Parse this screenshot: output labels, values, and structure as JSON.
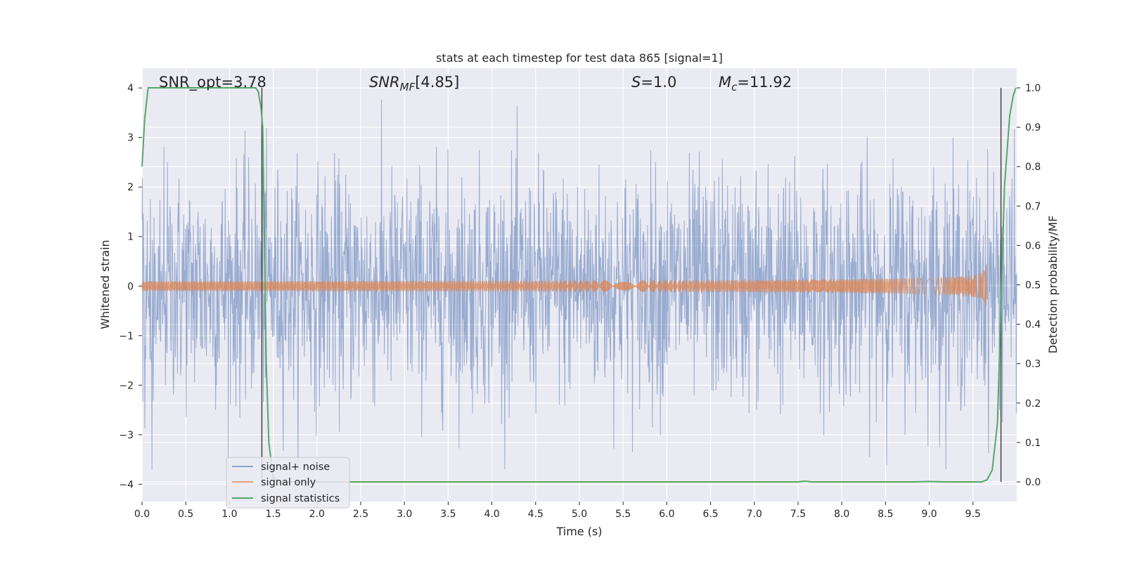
{
  "chart_data": {
    "type": "line",
    "title": "stats at each timestep for test data 865 [signal=1]",
    "xlabel": "Time (s)",
    "ylabel": "Whitened strain",
    "ylabel_right": "Detection probability/MF",
    "xlim": [
      0.0,
      10.0
    ],
    "ylim": [
      -4.35,
      4.4
    ],
    "ylim_right": [
      -0.05,
      1.05
    ],
    "x_ticks": [
      0.0,
      0.5,
      1.0,
      1.5,
      2.0,
      2.5,
      3.0,
      3.5,
      4.0,
      4.5,
      5.0,
      5.5,
      6.0,
      6.5,
      7.0,
      7.5,
      8.0,
      8.5,
      9.0,
      9.5
    ],
    "x_tick_labels": [
      "0.0",
      "0.5",
      "1.0",
      "1.5",
      "2.0",
      "2.5",
      "3.0",
      "3.5",
      "4.0",
      "4.5",
      "5.0",
      "5.5",
      "6.0",
      "6.5",
      "7.0",
      "7.5",
      "8.0",
      "8.5",
      "9.0",
      "9.5"
    ],
    "y_ticks": [
      -4,
      -3,
      -2,
      -1,
      0,
      1,
      2,
      3,
      4
    ],
    "y_tick_labels": [
      "−4",
      "−3",
      "−2",
      "−1",
      "0",
      "1",
      "2",
      "3",
      "4"
    ],
    "y_right_ticks": [
      0.0,
      0.1,
      0.2,
      0.3,
      0.4,
      0.5,
      0.6,
      0.7,
      0.8,
      0.9,
      1.0
    ],
    "y_right_tick_labels": [
      "0.0",
      "0.1",
      "0.2",
      "0.3",
      "0.4",
      "0.5",
      "0.6",
      "0.7",
      "0.8",
      "0.9",
      "1.0"
    ],
    "grid": true,
    "legend_position": "lower-left",
    "annotations": {
      "snr_opt": "SNR_opt=3.78",
      "snr_mf": "[4.85]",
      "s": "=1.0",
      "mc": "=11.92"
    },
    "vertical_lines": [
      1.37,
      9.82
    ],
    "series": [
      {
        "name": "signal+ noise",
        "color": "#4c72b0",
        "kind": "noise",
        "approx_std": 1.0,
        "envelope_max": 4.0,
        "envelope_min": -3.7
      },
      {
        "name": "signal only",
        "color": "#dd8452",
        "kind": "chirp",
        "x_start": 0.0,
        "x_end": 9.66,
        "peak_amplitude": 0.5
      },
      {
        "name": "signal statistics",
        "color": "#55a868",
        "axis": "right",
        "x": [
          0.0,
          0.03,
          0.07,
          0.12,
          0.2,
          0.4,
          0.6,
          0.8,
          1.0,
          1.2,
          1.3,
          1.33,
          1.36,
          1.38,
          1.4,
          1.42,
          1.45,
          1.5,
          1.6,
          2.0,
          3.0,
          4.0,
          5.0,
          6.0,
          7.0,
          7.4,
          7.5,
          7.58,
          7.66,
          7.8,
          8.0,
          8.5,
          8.8,
          9.0,
          9.2,
          9.5,
          9.6,
          9.66,
          9.72,
          9.78,
          9.82,
          9.86,
          9.92,
          9.96,
          9.99
        ],
        "y": [
          0.8,
          0.92,
          1.0,
          1.0,
          1.0,
          1.0,
          1.0,
          1.0,
          1.0,
          1.0,
          1.0,
          0.99,
          0.95,
          0.9,
          0.6,
          0.3,
          0.1,
          0.01,
          0.0,
          0.0,
          0.0,
          0.0,
          0.0,
          0.0,
          0.0,
          0.0,
          0.0,
          0.002,
          0.0,
          0.0,
          0.0,
          0.0,
          0.0,
          0.001,
          0.0,
          0.0,
          0.0,
          0.005,
          0.03,
          0.15,
          0.45,
          0.75,
          0.93,
          0.98,
          1.0
        ]
      }
    ]
  }
}
